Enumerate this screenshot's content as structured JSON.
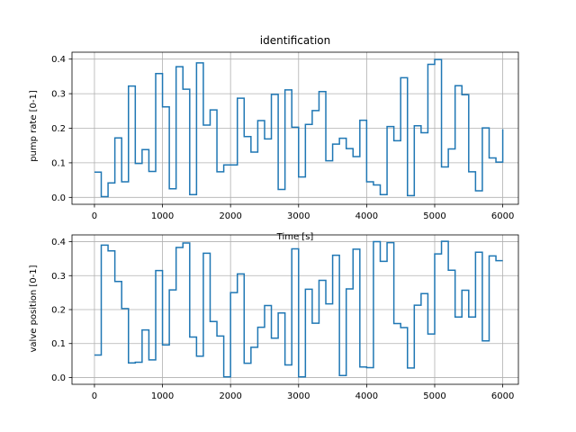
{
  "chart_data": [
    {
      "type": "line",
      "title": "identification",
      "xlabel": "Time [s]",
      "ylabel": "pump rate [0-1]",
      "xlim": [
        -330,
        6230
      ],
      "ylim": [
        -0.02,
        0.42
      ],
      "xticks": [
        0,
        1000,
        2000,
        3000,
        4000,
        5000,
        6000
      ],
      "yticks": [
        0.0,
        0.1,
        0.2,
        0.3,
        0.4
      ],
      "ytick_labels": [
        "0.0",
        "0.1",
        "0.2",
        "0.3",
        "0.4"
      ],
      "grid": true,
      "line_color": "#1f77b4",
      "series": [
        {
          "step": "post",
          "x": [
            0,
            100,
            200,
            300,
            400,
            500,
            600,
            700,
            800,
            900,
            1000,
            1100,
            1200,
            1300,
            1400,
            1500,
            1600,
            1700,
            1800,
            1900,
            2000,
            2100,
            2200,
            2300,
            2400,
            2500,
            2600,
            2700,
            2800,
            2900,
            3000,
            3100,
            3200,
            3300,
            3400,
            3500,
            3600,
            3700,
            3800,
            3900,
            4000,
            4100,
            4200,
            4300,
            4400,
            4500,
            4600,
            4700,
            4800,
            4900,
            5000,
            5100,
            5200,
            5300,
            5400,
            5500,
            5600,
            5700,
            5800,
            5900,
            6000
          ],
          "y": [
            0.073,
            0.002,
            0.042,
            0.172,
            0.045,
            0.322,
            0.098,
            0.138,
            0.075,
            0.358,
            0.262,
            0.025,
            0.378,
            0.313,
            0.008,
            0.389,
            0.209,
            0.253,
            0.074,
            0.094,
            0.094,
            0.287,
            0.176,
            0.131,
            0.222,
            0.169,
            0.298,
            0.023,
            0.311,
            0.203,
            0.059,
            0.211,
            0.251,
            0.306,
            0.106,
            0.154,
            0.171,
            0.141,
            0.118,
            0.223,
            0.045,
            0.036,
            0.008,
            0.205,
            0.164,
            0.346,
            0.005,
            0.207,
            0.187,
            0.385,
            0.399,
            0.088,
            0.14,
            0.323,
            0.297,
            0.074,
            0.019,
            0.201,
            0.114,
            0.102,
            0.197
          ]
        }
      ]
    },
    {
      "type": "line",
      "title": "",
      "xlabel": "",
      "ylabel": "valve position [0-1]",
      "xlim": [
        -330,
        6230
      ],
      "ylim": [
        -0.02,
        0.42
      ],
      "xticks": [
        0,
        1000,
        2000,
        3000,
        4000,
        5000,
        6000
      ],
      "yticks": [
        0.0,
        0.1,
        0.2,
        0.3,
        0.4
      ],
      "ytick_labels": [
        "0.0",
        "0.1",
        "0.2",
        "0.3",
        "0.4"
      ],
      "grid": true,
      "line_color": "#1f77b4",
      "series": [
        {
          "step": "post",
          "x": [
            0,
            100,
            200,
            300,
            400,
            500,
            600,
            700,
            800,
            900,
            1000,
            1100,
            1200,
            1300,
            1400,
            1500,
            1600,
            1700,
            1800,
            1900,
            2000,
            2100,
            2200,
            2300,
            2400,
            2500,
            2600,
            2700,
            2800,
            2900,
            3000,
            3100,
            3200,
            3300,
            3400,
            3500,
            3600,
            3700,
            3800,
            3900,
            4000,
            4100,
            4200,
            4300,
            4400,
            4500,
            4600,
            4700,
            4800,
            4900,
            5000,
            5100,
            5200,
            5300,
            5400,
            5500,
            5600,
            5700,
            5800,
            5900,
            6000
          ],
          "y": [
            0.066,
            0.39,
            0.373,
            0.283,
            0.203,
            0.043,
            0.045,
            0.14,
            0.052,
            0.315,
            0.096,
            0.258,
            0.383,
            0.396,
            0.119,
            0.063,
            0.366,
            0.165,
            0.122,
            0.002,
            0.25,
            0.305,
            0.042,
            0.089,
            0.148,
            0.212,
            0.116,
            0.19,
            0.037,
            0.379,
            0.002,
            0.26,
            0.16,
            0.286,
            0.217,
            0.36,
            0.006,
            0.261,
            0.378,
            0.031,
            0.029,
            0.4,
            0.342,
            0.397,
            0.159,
            0.147,
            0.028,
            0.213,
            0.247,
            0.128,
            0.364,
            0.401,
            0.316,
            0.178,
            0.257,
            0.178,
            0.369,
            0.108,
            0.358,
            0.344,
            0.344
          ]
        }
      ]
    }
  ]
}
